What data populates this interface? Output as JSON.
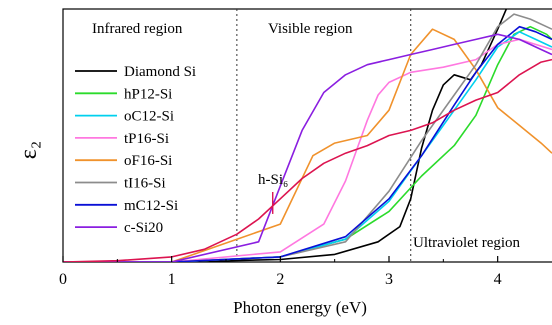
{
  "chart_data": {
    "type": "line",
    "xlabel": "Photon energy (eV)",
    "ylabel": "ε₂",
    "xlim": [
      0,
      4.5
    ],
    "ylim": [
      0,
      1.0
    ],
    "xticks": [
      0,
      1,
      2,
      3,
      4
    ],
    "yticks_shown": false,
    "grid": false,
    "legend_position": "left",
    "regions": [
      {
        "label": "Infrared region",
        "boundary_x": 1.6
      },
      {
        "label": "Visible region",
        "boundary_x": 3.2
      },
      {
        "label": "Ultraviolet region"
      }
    ],
    "annotations": [
      {
        "text": "h-Si₆",
        "x": 1.9,
        "y": 0.44,
        "arrow_to": {
          "x": 1.93,
          "y": 0.19
        },
        "color": "#dc1450"
      }
    ],
    "series": [
      {
        "name": "Diamond Si",
        "color": "#000000",
        "x": [
          0,
          1,
          2,
          2.5,
          2.9,
          3.1,
          3.2,
          3.3,
          3.4,
          3.5,
          3.6,
          3.75,
          3.85,
          4.0,
          4.1
        ],
        "y": [
          0,
          0,
          0.01,
          0.03,
          0.08,
          0.14,
          0.25,
          0.45,
          0.6,
          0.7,
          0.74,
          0.72,
          0.78,
          0.92,
          1.02
        ]
      },
      {
        "name": "hP12-Si",
        "color": "#2bdb2b",
        "x": [
          0,
          1,
          2,
          2.6,
          3.0,
          3.3,
          3.6,
          3.8,
          4.0,
          4.15,
          4.3,
          4.45,
          4.5
        ],
        "y": [
          0,
          0,
          0.02,
          0.09,
          0.2,
          0.34,
          0.46,
          0.58,
          0.78,
          0.9,
          0.93,
          0.9,
          0.88
        ]
      },
      {
        "name": "oC12-Si",
        "color": "#00d0ee",
        "x": [
          0,
          1,
          2,
          2.6,
          3.0,
          3.3,
          3.6,
          3.8,
          4.0,
          4.2,
          4.35,
          4.5
        ],
        "y": [
          0,
          0,
          0.02,
          0.09,
          0.24,
          0.42,
          0.6,
          0.72,
          0.85,
          0.91,
          0.88,
          0.85
        ]
      },
      {
        "name": "tP16-Si",
        "color": "#ff78e0",
        "x": [
          0,
          1,
          2,
          2.4,
          2.6,
          2.8,
          2.9,
          3.0,
          3.2,
          3.5,
          3.8,
          4.0,
          4.2,
          4.5
        ],
        "y": [
          0,
          0,
          0.04,
          0.15,
          0.32,
          0.56,
          0.66,
          0.71,
          0.75,
          0.77,
          0.8,
          0.86,
          0.88,
          0.84
        ]
      },
      {
        "name": "oF16-Si",
        "color": "#f0922c",
        "x": [
          0,
          1,
          2,
          2.3,
          2.5,
          2.8,
          3.0,
          3.2,
          3.4,
          3.6,
          3.8,
          4.0,
          4.2,
          4.4,
          4.5
        ],
        "y": [
          0,
          0,
          0.15,
          0.42,
          0.47,
          0.5,
          0.6,
          0.82,
          0.92,
          0.88,
          0.76,
          0.61,
          0.54,
          0.47,
          0.43
        ]
      },
      {
        "name": "tI16-Si",
        "color": "#8c8c8c",
        "x": [
          0,
          1,
          2,
          2.6,
          3.0,
          3.3,
          3.6,
          3.8,
          4.0,
          4.15,
          4.3,
          4.5
        ],
        "y": [
          0,
          0,
          0.02,
          0.08,
          0.28,
          0.48,
          0.66,
          0.78,
          0.93,
          0.98,
          0.96,
          0.92
        ]
      },
      {
        "name": "mC12-Si",
        "color": "#0a10d6",
        "x": [
          0,
          1,
          2,
          2.6,
          3.0,
          3.3,
          3.6,
          3.8,
          4.0,
          4.2,
          4.35,
          4.5
        ],
        "y": [
          0,
          0,
          0.02,
          0.1,
          0.25,
          0.42,
          0.62,
          0.75,
          0.86,
          0.93,
          0.91,
          0.88
        ]
      },
      {
        "name": "c-Si20",
        "color": "#8a1ee0",
        "x": [
          0,
          1,
          1.8,
          2.0,
          2.2,
          2.4,
          2.6,
          2.8,
          3.0,
          3.2,
          3.4,
          3.6,
          3.8,
          4.0,
          4.2,
          4.4,
          4.5
        ],
        "y": [
          0,
          0,
          0.08,
          0.3,
          0.52,
          0.67,
          0.74,
          0.78,
          0.8,
          0.82,
          0.84,
          0.86,
          0.88,
          0.9,
          0.88,
          0.84,
          0.82
        ]
      },
      {
        "name": "h-Si6",
        "color": "#dc1450",
        "x": [
          0,
          0.5,
          1.0,
          1.3,
          1.6,
          1.8,
          2.0,
          2.2,
          2.4,
          2.6,
          2.8,
          3.0,
          3.2,
          3.4,
          3.6,
          3.8,
          4.0,
          4.2,
          4.4,
          4.5
        ],
        "y": [
          0,
          0.005,
          0.02,
          0.05,
          0.11,
          0.17,
          0.25,
          0.33,
          0.39,
          0.43,
          0.46,
          0.5,
          0.52,
          0.55,
          0.6,
          0.64,
          0.67,
          0.74,
          0.79,
          0.8
        ]
      }
    ]
  }
}
